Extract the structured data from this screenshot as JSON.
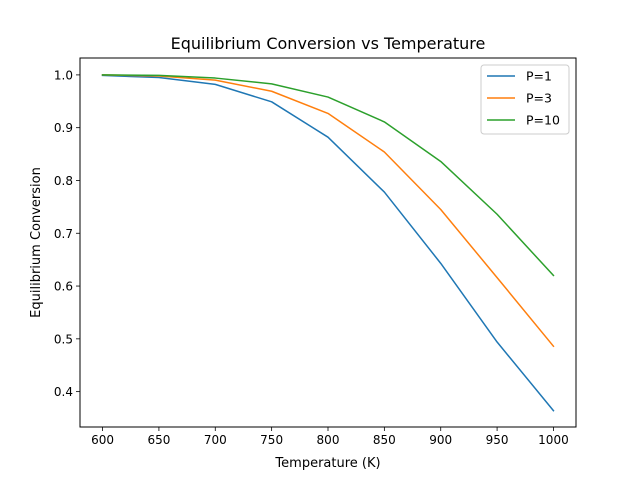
{
  "chart_data": {
    "type": "line",
    "title": "Equilibrium Conversion vs Temperature",
    "xlabel": "Temperature (K)",
    "ylabel": "Equilibrium Conversion",
    "x": [
      600,
      650,
      700,
      750,
      800,
      850,
      900,
      950,
      1000
    ],
    "xlim": [
      580,
      1020
    ],
    "ylim": [
      0.333,
      1.032
    ],
    "xticks": [
      600,
      650,
      700,
      750,
      800,
      850,
      900,
      950,
      1000
    ],
    "yticks": [
      0.4,
      0.5,
      0.6,
      0.7,
      0.8,
      0.9,
      1.0
    ],
    "ytick_labels": [
      "0.4",
      "0.5",
      "0.6",
      "0.7",
      "0.8",
      "0.9",
      "1.0"
    ],
    "grid": false,
    "legend_position": "top-right",
    "series": [
      {
        "name": "P=1",
        "color": "#1f77b4",
        "values": [
          0.999,
          0.995,
          0.982,
          0.949,
          0.882,
          0.778,
          0.643,
          0.494,
          0.364
        ]
      },
      {
        "name": "P=3",
        "color": "#ff7f0e",
        "values": [
          1.0,
          0.998,
          0.99,
          0.969,
          0.927,
          0.854,
          0.745,
          0.616,
          0.486
        ]
      },
      {
        "name": "P=10",
        "color": "#2ca02c",
        "values": [
          1.0,
          0.999,
          0.994,
          0.983,
          0.958,
          0.911,
          0.836,
          0.736,
          0.62
        ]
      }
    ]
  }
}
